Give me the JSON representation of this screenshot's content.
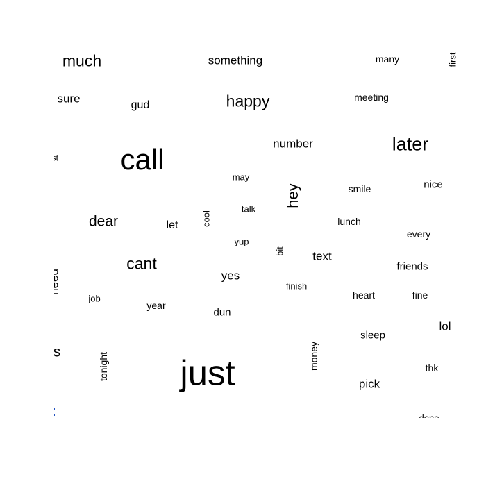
{
  "words": {
    "much": "much",
    "something": "something",
    "many": "many",
    "first": "first",
    "sure": "sure",
    "gud": "gud",
    "happy": "happy",
    "meeting": "meeting",
    "call": "call",
    "number": "number",
    "later": "later",
    "st": "st",
    "may": "may",
    "hey": "hey",
    "smile": "smile",
    "nice": "nice",
    "talk": "talk",
    "cool": "cool",
    "dear": "dear",
    "let": "let",
    "lunch": "lunch",
    "every": "every",
    "yup": "yup",
    "bit": "bit",
    "text": "text",
    "cant": "cant",
    "friends": "friends",
    "yes": "yes",
    "finish": "finish",
    "job": "job",
    "year": "year",
    "heart": "heart",
    "fine": "fine",
    "dun": "dun",
    "lol": "lol",
    "sleep": "sleep",
    "s": "s",
    "tonight": "tonight",
    "just": "just",
    "money": "money",
    "thk": "thk",
    "pick": "pick",
    "done": "done",
    "need": "need"
  },
  "colors": {
    "text": "#000000",
    "background": "#ffffff",
    "edge_mark": "#1f4fbf"
  }
}
